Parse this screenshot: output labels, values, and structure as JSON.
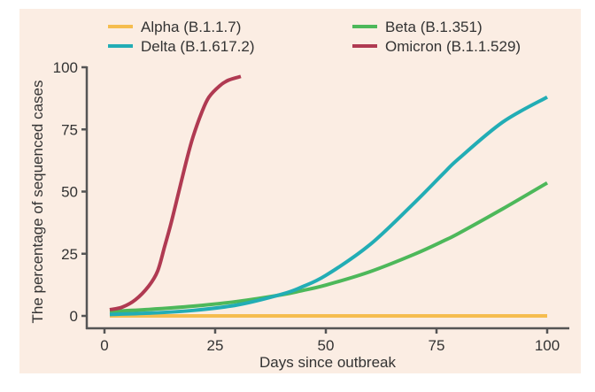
{
  "chart_data": {
    "type": "line",
    "title": "",
    "xlabel": "Days since outbreak",
    "ylabel": "The percentage of sequenced cases",
    "xlim": [
      -4,
      105
    ],
    "ylim": [
      -4,
      100
    ],
    "xticks": [
      0,
      25,
      50,
      75,
      100
    ],
    "xtick_labels": [
      "0",
      "25",
      "50",
      "75",
      "100"
    ],
    "yticks": [
      0,
      25,
      50,
      75,
      100
    ],
    "ytick_labels": [
      "0",
      "25",
      "50",
      "75",
      "100"
    ],
    "grid": false,
    "legend": {
      "placement": "top",
      "columns": 2
    },
    "series": [
      {
        "name": "Alpha (B.1.1.7)",
        "color": "#f5bd4f",
        "x": [
          1.2,
          10,
          20,
          30,
          40,
          50,
          60,
          70,
          80,
          90,
          100
        ],
        "y": [
          0,
          0,
          0,
          0,
          0,
          0,
          0,
          0,
          0,
          0,
          0
        ]
      },
      {
        "name": "Beta (B.1.351)",
        "color": "#4db85a",
        "x": [
          1.2,
          10,
          20,
          30,
          40,
          44.4,
          50,
          60,
          70,
          76.4,
          80,
          90,
          100
        ],
        "y": [
          1.8,
          2.6,
          3.9,
          5.8,
          8.5,
          10.1,
          12.4,
          17.8,
          24.8,
          30.0,
          33.2,
          43.1,
          53.5
        ]
      },
      {
        "name": "Delta (B.1.617.2)",
        "color": "#22adb5",
        "x": [
          1.2,
          10,
          20,
          30,
          40,
          44.4,
          50,
          60,
          70,
          76.4,
          80,
          90,
          100
        ],
        "y": [
          0.6,
          1.1,
          2.2,
          4.4,
          8.7,
          11.5,
          16.3,
          28.7,
          45.5,
          57.0,
          63.2,
          78.0,
          88.0
        ]
      },
      {
        "name": "Omicron (B.1.1.529)",
        "color": "#b03a52",
        "x": [
          1.2,
          4,
          7,
          10,
          12,
          13.6,
          15,
          16.8,
          18.6,
          20,
          22,
          23.6,
          26,
          28,
          30.8
        ],
        "y": [
          2.5,
          3.5,
          6.5,
          12.0,
          18.0,
          28.0,
          37.0,
          50.0,
          63.0,
          72.0,
          82.0,
          88.0,
          92.5,
          94.8,
          96.3
        ]
      }
    ]
  }
}
